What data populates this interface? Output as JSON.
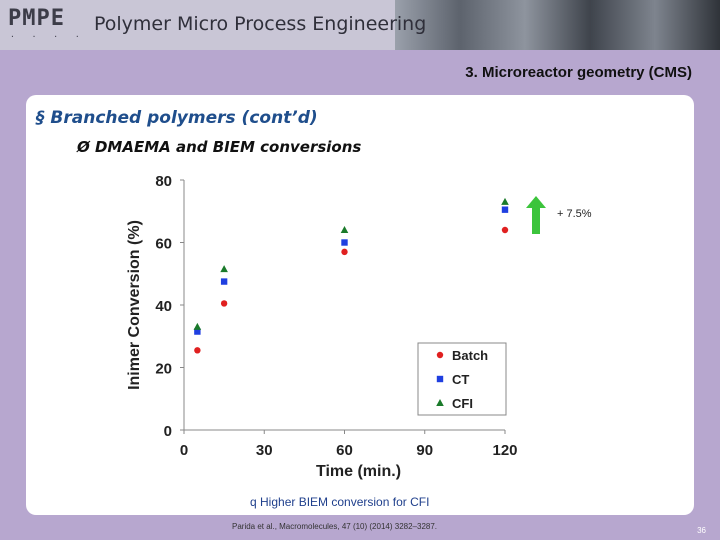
{
  "header": {
    "logo_text": "PMPE",
    "logo_sub": "· · · ·",
    "title": "Polymer Micro Process Engineering"
  },
  "section_title": "3. Microreactor geometry (CMS)",
  "bullets": {
    "level1": "§  Branched polymers (cont’d)",
    "level2": "Ø  DMAEMA and BIEM conversions"
  },
  "annotation": {
    "text": "+ 7.5%",
    "arrow_color": "#3cc43c"
  },
  "footer_note": "q  Higher BIEM conversion for CFI",
  "citation": "Parida et al., Macromolecules, 47 (10) (2014) 3282–3287.",
  "page_number": "36",
  "chart_data": {
    "type": "scatter",
    "xlabel": "Time (min.)",
    "ylabel": "Inimer Conversion (%)",
    "xlim": [
      0,
      120
    ],
    "ylim": [
      0,
      80
    ],
    "xticks": [
      0,
      30,
      60,
      90,
      120
    ],
    "yticks": [
      0,
      20,
      40,
      60,
      80
    ],
    "grid": false,
    "legend_position": "bottom-right",
    "series": [
      {
        "name": "Batch",
        "marker": "circle",
        "color": "#e02020",
        "x": [
          5,
          15,
          60,
          120
        ],
        "y": [
          25.5,
          40.5,
          57,
          64
        ]
      },
      {
        "name": "CT",
        "marker": "square",
        "color": "#1f3fe0",
        "x": [
          5,
          15,
          60,
          120
        ],
        "y": [
          31.5,
          47.5,
          60,
          70.5
        ]
      },
      {
        "name": "CFI",
        "marker": "triangle",
        "color": "#1a7a2a",
        "x": [
          5,
          15,
          60,
          120
        ],
        "y": [
          33,
          51.5,
          64,
          73
        ]
      }
    ]
  }
}
